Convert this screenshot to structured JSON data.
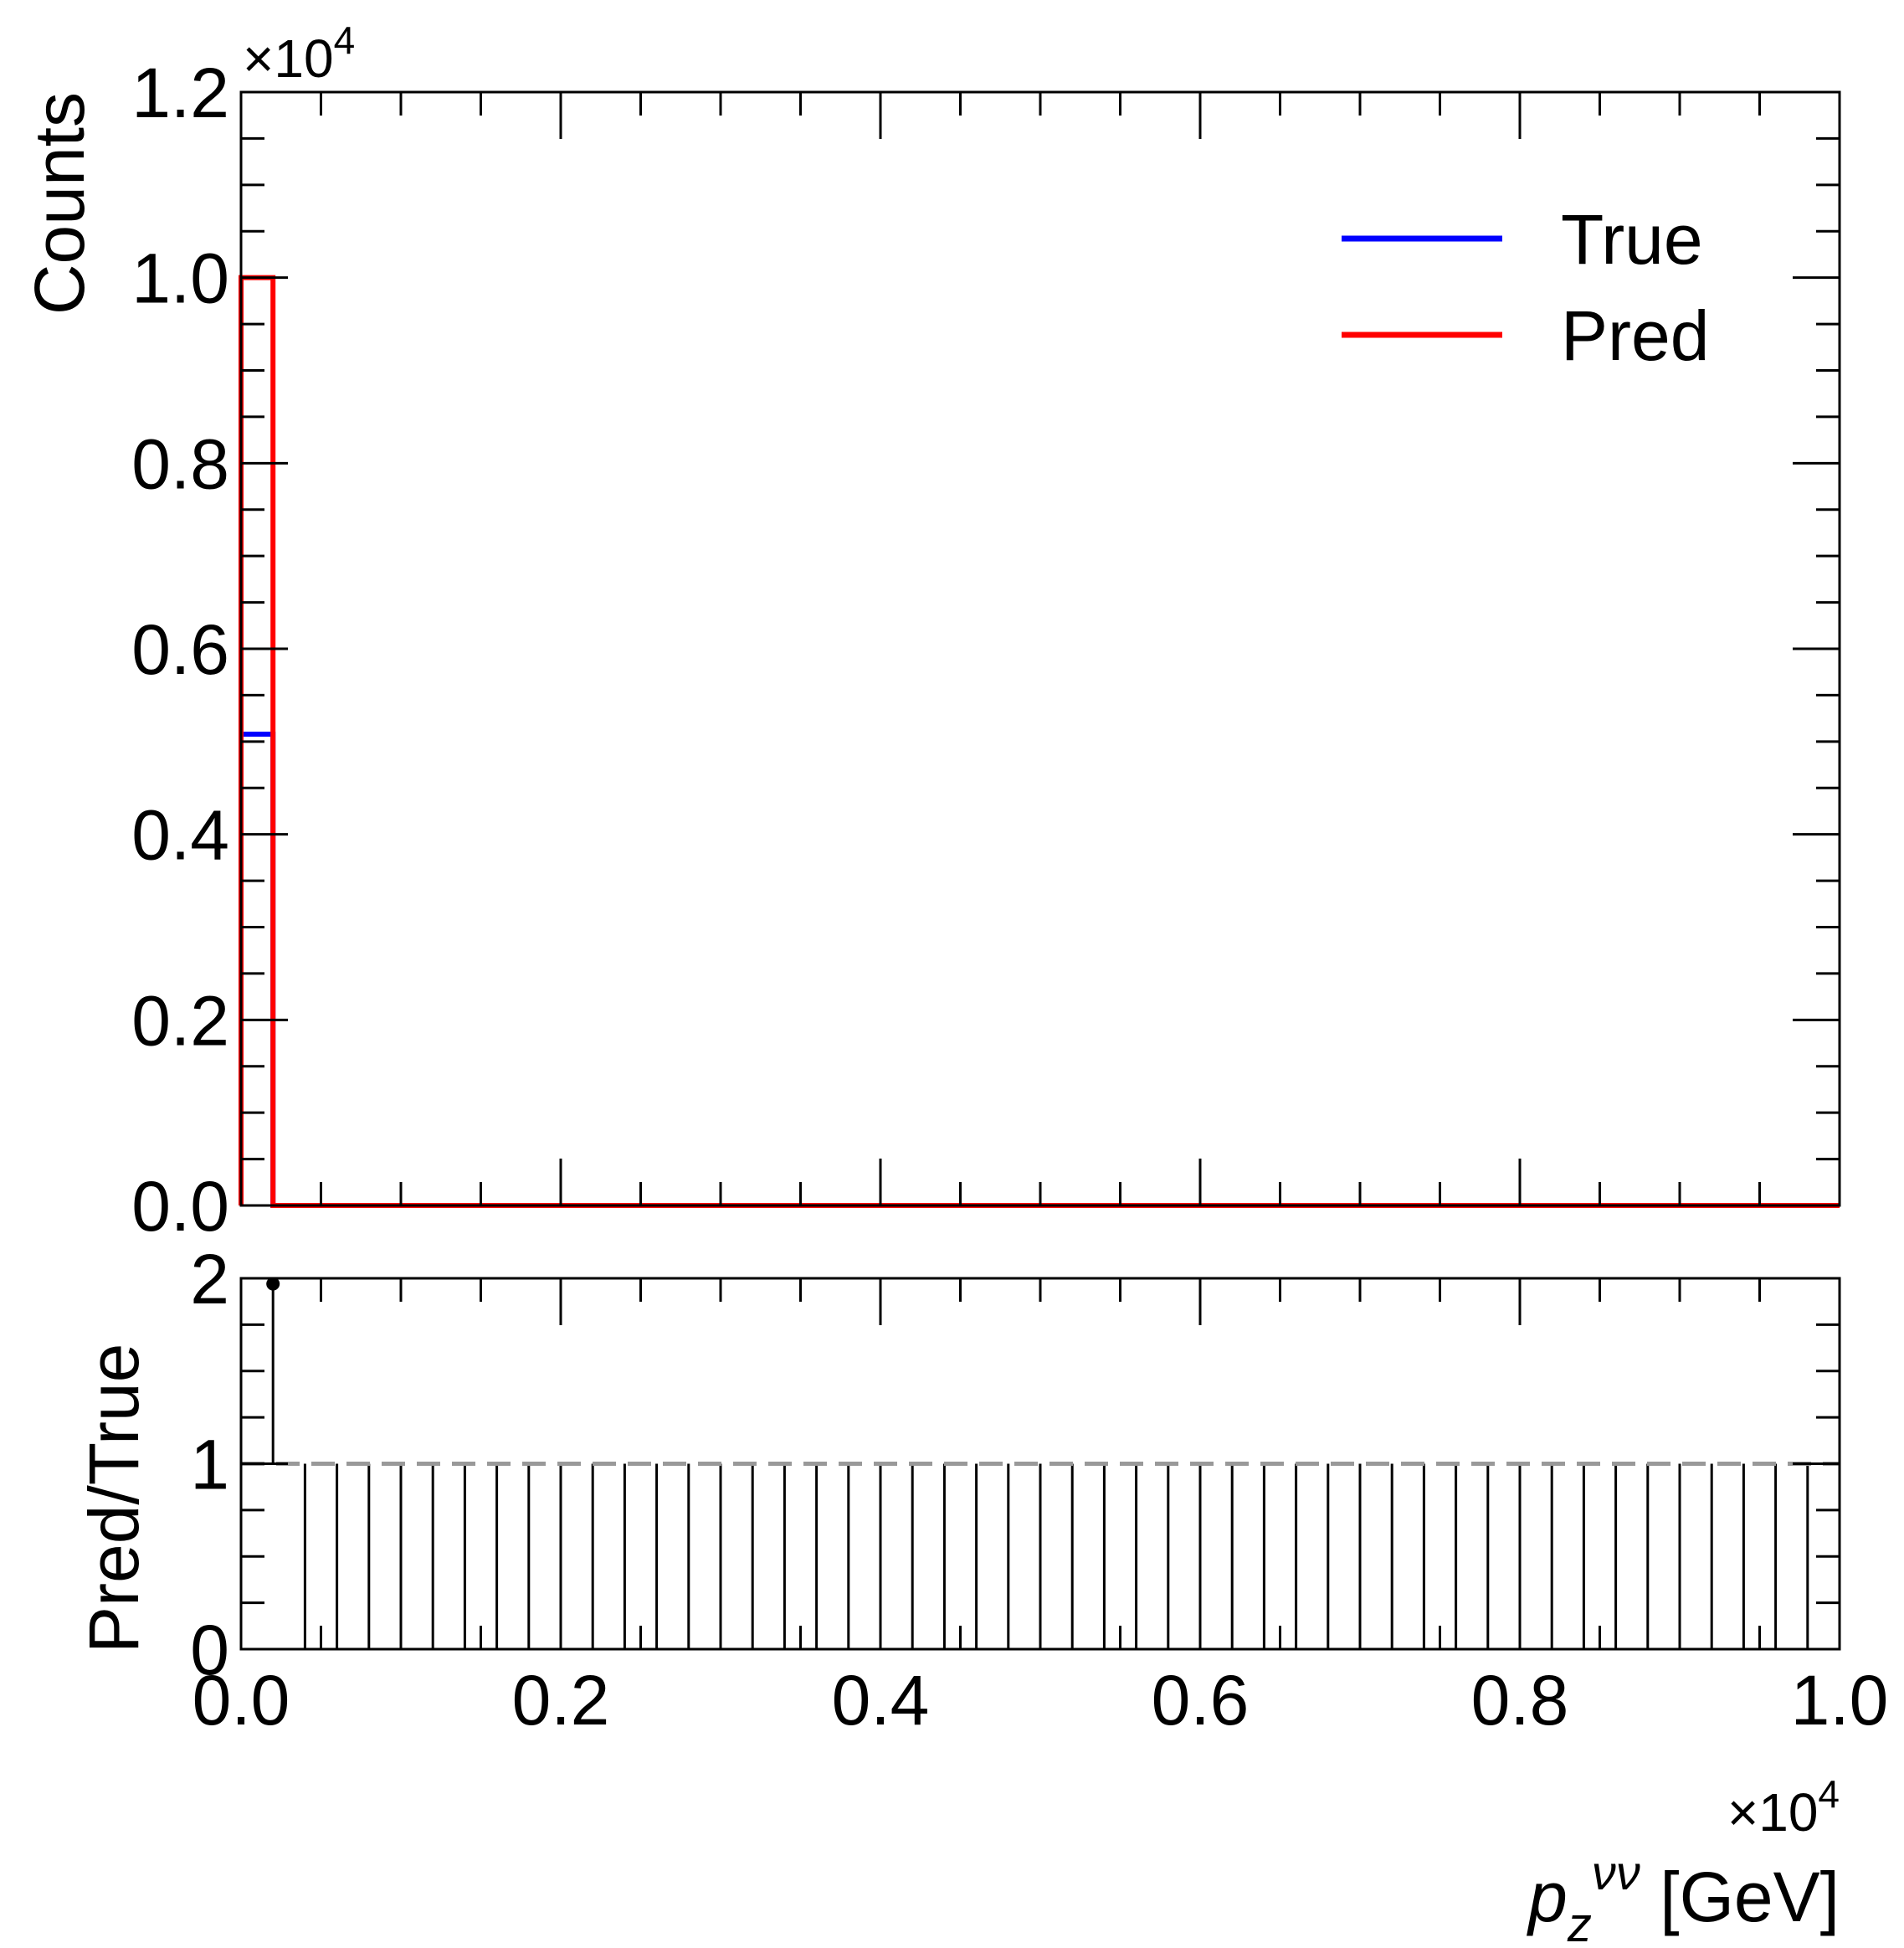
{
  "chart_data": [
    {
      "type": "histogram",
      "panel": "main",
      "ylabel": "Counts",
      "y_multiplier": "×10",
      "y_multiplier_exp": "4",
      "ylim": [
        0,
        12000
      ],
      "xlim": [
        0,
        10000
      ],
      "yticks": [
        0,
        2000,
        4000,
        6000,
        8000,
        10000,
        12000
      ],
      "ytick_labels": [
        "0.0",
        "0.2",
        "0.4",
        "0.6",
        "0.8",
        "1.0",
        "1.2"
      ],
      "legend_position": "top-right",
      "series": [
        {
          "name": "True",
          "color": "#0000ff",
          "bin_edges": [
            0,
            200,
            10000
          ],
          "counts": [
            5080,
            0
          ]
        },
        {
          "name": "Pred",
          "color": "#ff0000",
          "bin_edges": [
            0,
            200,
            10000
          ],
          "counts": [
            10000,
            0
          ]
        }
      ]
    },
    {
      "type": "ratio",
      "panel": "ratio",
      "ylabel": "Pred/True",
      "ylim": [
        0,
        2
      ],
      "yticks": [
        0,
        1,
        2
      ],
      "ytick_labels": [
        "0",
        "1",
        "2"
      ],
      "reference_line": 1,
      "reference_color": "#999999",
      "point": {
        "x": 200,
        "y": 1.97
      },
      "xlim": [
        0,
        10000
      ],
      "xticks": [
        0,
        2000,
        4000,
        6000,
        8000,
        10000
      ],
      "xtick_labels": [
        "0.0",
        "0.2",
        "0.4",
        "0.6",
        "0.8",
        "1.0"
      ],
      "x_multiplier": "×10",
      "x_multiplier_exp": "4",
      "xlabel_main": "p",
      "xlabel_sub": "z",
      "xlabel_sup": "νν",
      "xlabel_unit": " [GeV]",
      "vline_spacing": 200
    }
  ]
}
